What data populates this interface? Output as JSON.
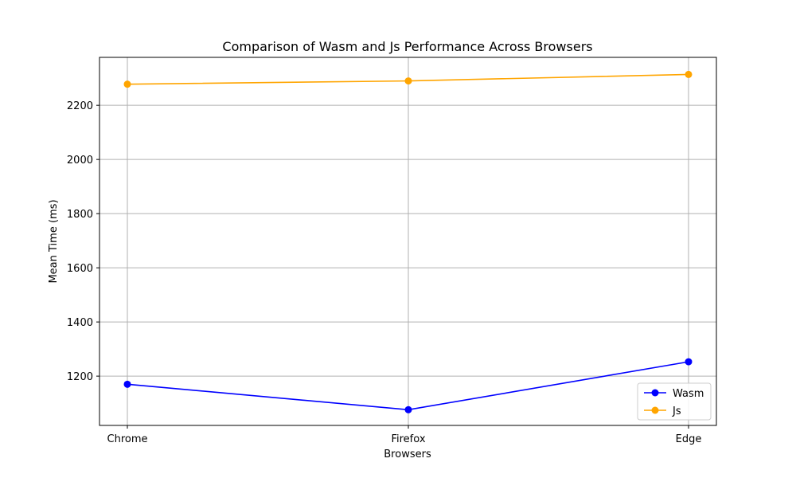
{
  "chart_data": {
    "type": "line",
    "title": "Comparison of Wasm and Js Performance Across Browsers",
    "xlabel": "Browsers",
    "ylabel": "Mean Time (ms)",
    "categories": [
      "Chrome",
      "Firefox",
      "Edge"
    ],
    "ylim": [
      1018,
      2377
    ],
    "yticks": [
      1200,
      1400,
      1600,
      1800,
      2000,
      2200
    ],
    "grid": true,
    "legend_position": "lower-right",
    "series": [
      {
        "name": "Wasm",
        "color": "#0000ff",
        "values": [
          1170,
          1076,
          1253
        ]
      },
      {
        "name": "Js",
        "color": "#ffa500",
        "values": [
          2278,
          2290,
          2314
        ]
      }
    ]
  }
}
